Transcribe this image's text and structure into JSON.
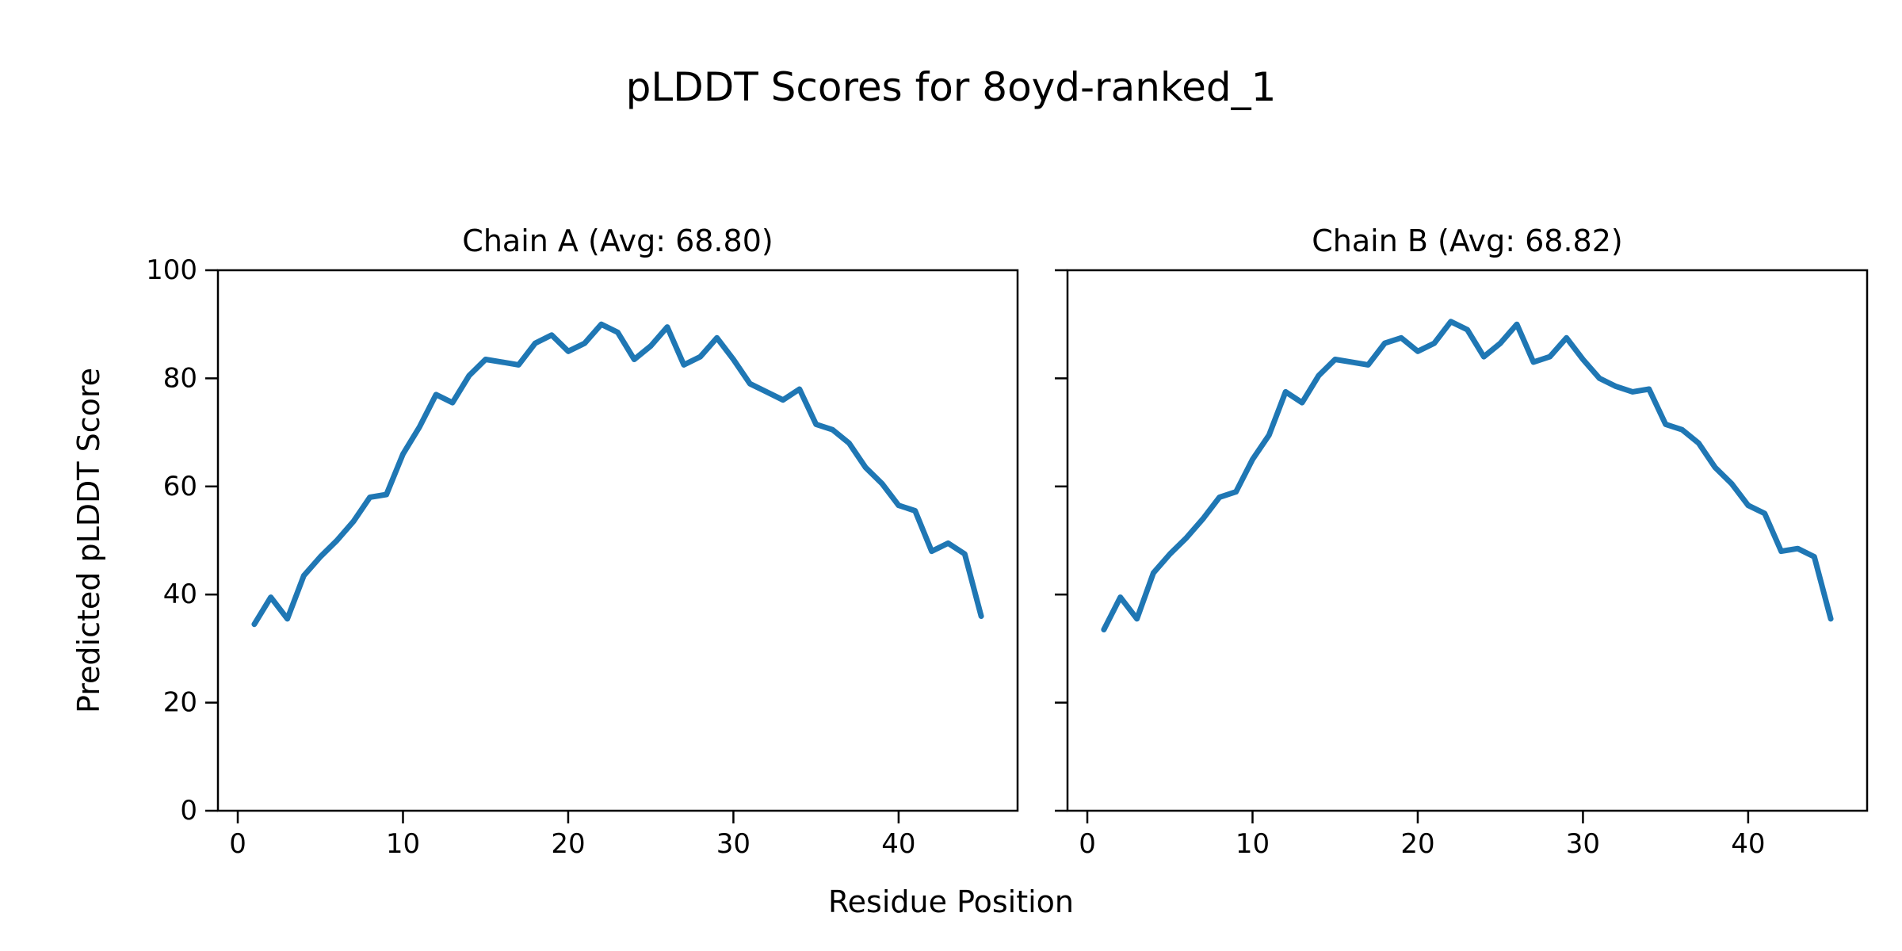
{
  "figure": {
    "suptitle": "pLDDT Scores for 8oyd-ranked_1",
    "xlabel": "Residue Position",
    "ylabel": "Predicted pLDDT Score",
    "background_color": "#ffffff",
    "text_color": "#000000",
    "axis_color": "#000000"
  },
  "chart_data": [
    {
      "type": "line",
      "title": "Chain A (Avg: 68.80)",
      "series_name": "Chain A pLDDT",
      "avg_label": "68.80",
      "avg_value": 68.8,
      "x": [
        1,
        2,
        3,
        4,
        5,
        6,
        7,
        8,
        9,
        10,
        11,
        12,
        13,
        14,
        15,
        16,
        17,
        18,
        19,
        20,
        21,
        22,
        23,
        24,
        25,
        26,
        27,
        28,
        29,
        30,
        31,
        32,
        33,
        34,
        35,
        36,
        37,
        38,
        39,
        40,
        41,
        42,
        43,
        44,
        45
      ],
      "values": [
        34.5,
        39.5,
        35.5,
        43.5,
        47,
        50,
        53.5,
        58,
        58.5,
        66,
        71,
        77,
        75.5,
        80.5,
        83.5,
        83,
        82.5,
        86.5,
        88,
        85,
        86.5,
        90,
        88.5,
        83.5,
        86,
        89.5,
        82.5,
        84,
        87.5,
        83.5,
        79,
        77.5,
        76,
        78,
        71.5,
        70.5,
        68,
        63.5,
        60.5,
        56.5,
        55.5,
        48,
        49.5,
        47.5,
        36
      ],
      "xlim": [
        -1.2,
        47.2
      ],
      "ylim": [
        0,
        100
      ],
      "xticks": [
        0,
        10,
        20,
        30,
        40
      ],
      "yticks": [
        0,
        20,
        40,
        60,
        80,
        100
      ],
      "xtick_labels": [
        "0",
        "10",
        "20",
        "30",
        "40"
      ],
      "ytick_labels": [
        "0",
        "20",
        "40",
        "60",
        "80",
        "100"
      ],
      "show_ytick_labels": true,
      "line_color": "#1f77b4",
      "grid": false,
      "legend": "none"
    },
    {
      "type": "line",
      "title": "Chain B (Avg: 68.82)",
      "series_name": "Chain B pLDDT",
      "avg_label": "68.82",
      "avg_value": 68.82,
      "x": [
        1,
        2,
        3,
        4,
        5,
        6,
        7,
        8,
        9,
        10,
        11,
        12,
        13,
        14,
        15,
        16,
        17,
        18,
        19,
        20,
        21,
        22,
        23,
        24,
        25,
        26,
        27,
        28,
        29,
        30,
        31,
        32,
        33,
        34,
        35,
        36,
        37,
        38,
        39,
        40,
        41,
        42,
        43,
        44,
        45
      ],
      "values": [
        33.5,
        39.5,
        35.5,
        44,
        47.5,
        50.5,
        54,
        58,
        59,
        65,
        69.5,
        77.5,
        75.5,
        80.5,
        83.5,
        83,
        82.5,
        86.5,
        87.5,
        85,
        86.5,
        90.5,
        89,
        84,
        86.5,
        90,
        83,
        84,
        87.5,
        83.5,
        80,
        78.5,
        77.5,
        78,
        71.5,
        70.5,
        68,
        63.5,
        60.5,
        56.5,
        55,
        48,
        48.5,
        47,
        35.5
      ],
      "xlim": [
        -1.2,
        47.2
      ],
      "ylim": [
        0,
        100
      ],
      "xticks": [
        0,
        10,
        20,
        30,
        40
      ],
      "yticks": [
        0,
        20,
        40,
        60,
        80,
        100
      ],
      "xtick_labels": [
        "0",
        "10",
        "20",
        "30",
        "40"
      ],
      "ytick_labels": [],
      "show_ytick_labels": false,
      "line_color": "#1f77b4",
      "grid": false,
      "legend": "none"
    }
  ]
}
